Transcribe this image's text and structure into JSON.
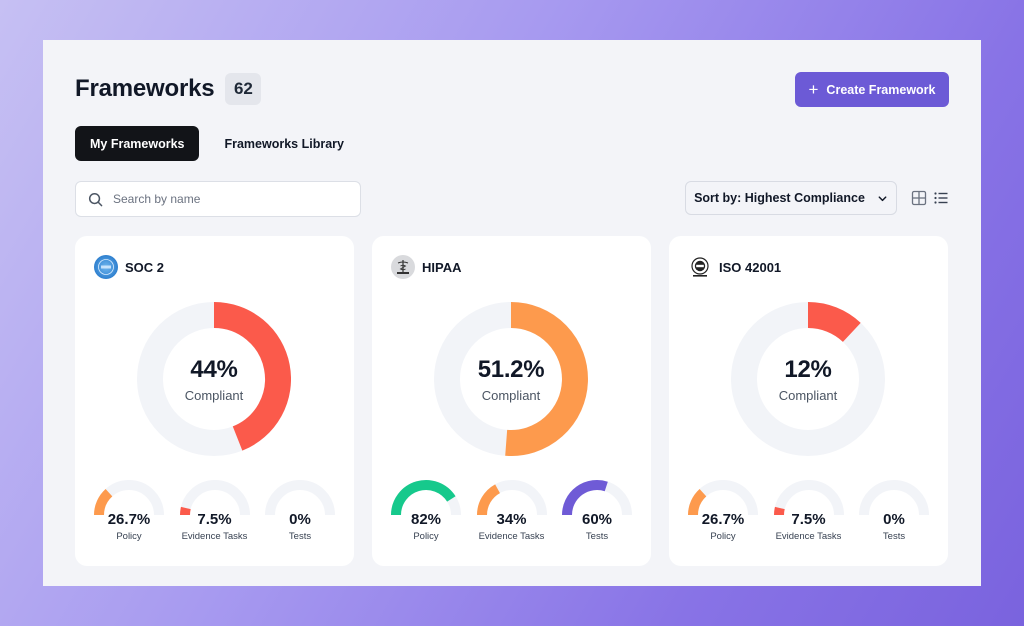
{
  "page": {
    "title": "Frameworks",
    "count": "62",
    "create_button": {
      "label": "Create Framework",
      "icon": "plus-icon"
    },
    "tabs": [
      {
        "label": "My Frameworks",
        "active": true
      },
      {
        "label": "Frameworks Library",
        "active": false
      }
    ],
    "search": {
      "placeholder": "Search by name",
      "icon": "search-icon"
    },
    "sort": {
      "label": "Sort by: Highest Compliance",
      "icon": "chevron-down-icon"
    },
    "view_toggles": [
      "grid-view-icon",
      "list-view-icon"
    ]
  },
  "colors": {
    "accent": "#6c5ad6",
    "red": "#fb5a4b",
    "orange": "#fd9a4d",
    "green": "#16c98c",
    "purple": "#6f5bd6",
    "track": "#f2f4f8"
  },
  "cards": [
    {
      "name": "SOC 2",
      "logo_icon": "soc2-logo-icon",
      "compliance_value": 44,
      "compliance_label": "44%",
      "compliance_caption": "Compliant",
      "color": "red",
      "metrics": [
        {
          "value": 26.7,
          "label": "26.7%",
          "caption": "Policy",
          "color": "orange"
        },
        {
          "value": 7.5,
          "label": "7.5%",
          "caption": "Evidence Tasks",
          "color": "red"
        },
        {
          "value": 0,
          "label": "0%",
          "caption": "Tests",
          "color": "purple"
        }
      ]
    },
    {
      "name": "HIPAA",
      "logo_icon": "hipaa-logo-icon",
      "compliance_value": 51.2,
      "compliance_label": "51.2%",
      "compliance_caption": "Compliant",
      "color": "orange",
      "metrics": [
        {
          "value": 82,
          "label": "82%",
          "caption": "Policy",
          "color": "green"
        },
        {
          "value": 34,
          "label": "34%",
          "caption": "Evidence Tasks",
          "color": "orange"
        },
        {
          "value": 60,
          "label": "60%",
          "caption": "Tests",
          "color": "purple"
        }
      ]
    },
    {
      "name": "ISO 42001",
      "logo_icon": "iso-logo-icon",
      "compliance_value": 12,
      "compliance_label": "12%",
      "compliance_caption": "Compliant",
      "color": "red",
      "metrics": [
        {
          "value": 26.7,
          "label": "26.7%",
          "caption": "Policy",
          "color": "orange"
        },
        {
          "value": 7.5,
          "label": "7.5%",
          "caption": "Evidence Tasks",
          "color": "red"
        },
        {
          "value": 0,
          "label": "0%",
          "caption": "Tests",
          "color": "purple"
        }
      ]
    }
  ]
}
